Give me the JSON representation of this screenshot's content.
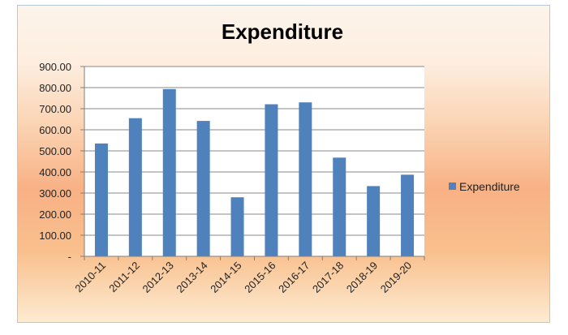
{
  "chart_data": {
    "type": "bar",
    "title": "Expenditure",
    "categories": [
      "2010-11",
      "2011-12",
      "2012-13",
      "2013-14",
      "2014-15",
      "2015-16",
      "2016-17",
      "2017-18",
      "2018-19",
      "2019-20"
    ],
    "series": [
      {
        "name": "Expenditure",
        "values": [
          535,
          655,
          793,
          642,
          280,
          721,
          730,
          468,
          333,
          387
        ],
        "color": "#4f81bd"
      }
    ],
    "ylim": [
      0,
      900
    ],
    "yticks": [
      0,
      100,
      200,
      300,
      400,
      500,
      600,
      700,
      800,
      900
    ],
    "ytick_labels": [
      "-",
      "100.00",
      "200.00",
      "300.00",
      "400.00",
      "500.00",
      "600.00",
      "700.00",
      "800.00",
      "900.00"
    ],
    "xlabel": "",
    "ylabel": "",
    "grid": true,
    "legend": "right",
    "x_tick_rotation": "-45deg"
  }
}
